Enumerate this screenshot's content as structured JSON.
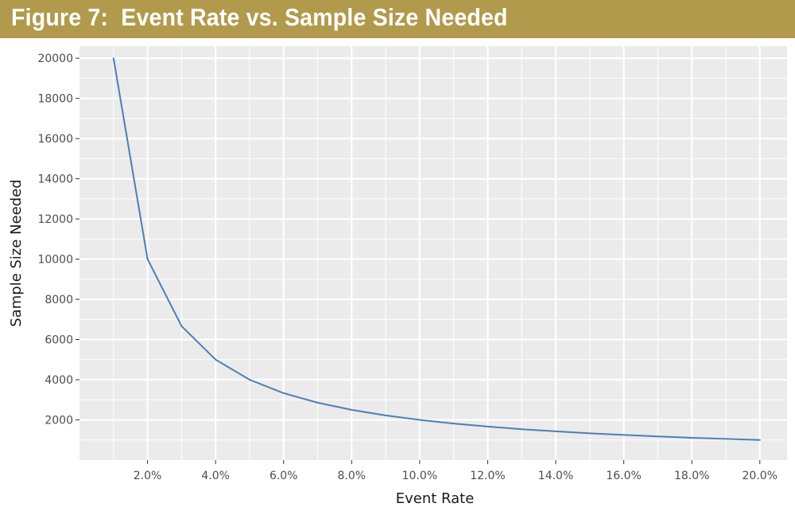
{
  "header": {
    "title": "Figure 7:  Event Rate vs. Sample Size Needed"
  },
  "colors": {
    "banner": "#b19a4c",
    "panel": "#ebebeb",
    "gridline": "#ffffff",
    "line": "#4d7fb5"
  },
  "chart_data": {
    "type": "line",
    "title": "Figure 7:  Event Rate vs. Sample Size Needed",
    "xlabel": "Event Rate",
    "ylabel": "Sample Size Needed",
    "x": [
      1,
      2,
      3,
      4,
      5,
      6,
      7,
      8,
      9,
      10,
      11,
      12,
      13,
      14,
      15,
      16,
      17,
      18,
      19,
      20
    ],
    "series": [
      {
        "values": [
          20000,
          10000,
          6667,
          5000,
          4000,
          3333,
          2857,
          2500,
          2222,
          2000,
          1818,
          1667,
          1538,
          1429,
          1333,
          1250,
          1176,
          1111,
          1053,
          1000
        ]
      }
    ],
    "xlim": [
      0,
      20.8
    ],
    "ylim": [
      0,
      20600
    ],
    "x_ticks": [
      2,
      4,
      6,
      8,
      10,
      12,
      14,
      16,
      18,
      20
    ],
    "x_tick_labels": [
      "2.0%",
      "4.0%",
      "6.0%",
      "8.0%",
      "10.0%",
      "12.0%",
      "14.0%",
      "16.0%",
      "18.0%",
      "20.0%"
    ],
    "y_ticks": [
      2000,
      4000,
      6000,
      8000,
      10000,
      12000,
      14000,
      16000,
      18000,
      20000
    ],
    "y_tick_labels": [
      "2000",
      "4000",
      "6000",
      "8000",
      "10000",
      "12000",
      "14000",
      "16000",
      "18000",
      "20000"
    ],
    "grid": true,
    "legend": "none"
  }
}
